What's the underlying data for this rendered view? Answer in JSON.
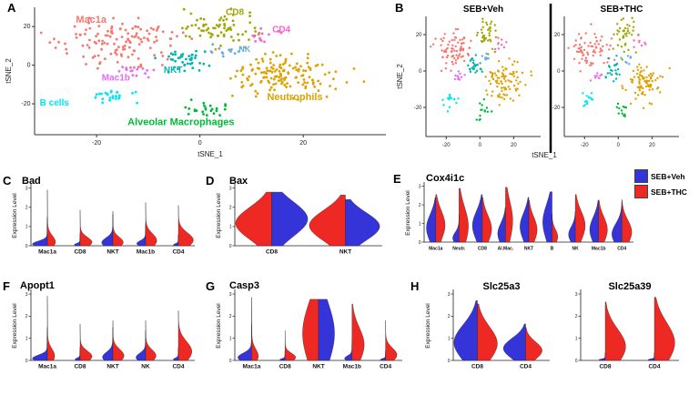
{
  "colors": {
    "blue": "#3434d8",
    "red": "#ee2823"
  },
  "panel_letters": {
    "A": "A",
    "B": "B",
    "C": "C",
    "D": "D",
    "E": "E",
    "F": "F",
    "G": "G",
    "H": "H"
  },
  "legend": {
    "items": [
      {
        "label": "SEB+Veh",
        "color": "#3434d8"
      },
      {
        "label": "SEB+THC",
        "color": "#ee2823"
      }
    ]
  },
  "chart_data": {
    "tsne": {
      "type": "scatter",
      "xlabel": "tSNE_1",
      "ylabel": "tSNE_2",
      "xticks": [
        -20,
        0,
        20
      ],
      "yticks": [
        -20,
        0,
        20
      ],
      "xrange": [
        -32,
        36
      ],
      "yrange": [
        -36,
        30
      ],
      "clusters": [
        {
          "name": "Mac1a",
          "color": "#F8766D",
          "cx": -16,
          "cy": 12,
          "sx": 6.5,
          "sy": 5.5,
          "n": 130,
          "label_x": -24,
          "label_y": 22,
          "label_fs": 11
        },
        {
          "name": "CD8",
          "color": "#9FA800",
          "cx": 4,
          "cy": 19,
          "sx": 3.2,
          "sy": 4.2,
          "n": 70,
          "label_x": 5,
          "label_y": 26,
          "label_fs": 10
        },
        {
          "name": "CD4",
          "color": "#FF61CC",
          "cx": 12,
          "cy": 15,
          "sx": 1.7,
          "sy": 1.7,
          "n": 14,
          "label_x": 14,
          "label_y": 17,
          "label_fs": 10
        },
        {
          "name": "NK",
          "color": "#62AEE4",
          "cx": 5,
          "cy": 7,
          "sx": 1.7,
          "sy": 1.6,
          "n": 13,
          "label_x": 7.5,
          "label_y": 7,
          "label_fs": 9
        },
        {
          "name": "NKT",
          "color": "#00B5AD",
          "cx": -3,
          "cy": 2,
          "sx": 2.1,
          "sy": 3.0,
          "n": 40,
          "label_x": -7,
          "label_y": -4,
          "label_fs": 10
        },
        {
          "name": "Mac1b",
          "color": "#E76BF3",
          "cx": -13,
          "cy": -3,
          "sx": 1.9,
          "sy": 1.5,
          "n": 16,
          "label_x": -19,
          "label_y": -8,
          "label_fs": 10
        },
        {
          "name": "B cells",
          "color": "#00E5F0",
          "cx": -18,
          "cy": -16,
          "sx": 2.5,
          "sy": 2.1,
          "n": 26,
          "label_x": -31,
          "label_y": -21,
          "label_fs": 10
        },
        {
          "name": "Neutrophils",
          "color": "#DFA100",
          "cx": 15,
          "cy": -6,
          "sx": 5.5,
          "sy": 5.2,
          "n": 150,
          "label_x": 13,
          "label_y": -18,
          "label_fs": 11
        },
        {
          "name": "Alveolar Macrophages",
          "color": "#00BA38",
          "cx": 2,
          "cy": -22,
          "sx": 2.3,
          "sy": 2.4,
          "n": 24,
          "label_x": -14,
          "label_y": -31,
          "label_fs": 11
        }
      ]
    },
    "tsne_plots": [
      {
        "id": "A",
        "title": ""
      },
      {
        "id": "B-left",
        "title": "SEB+Veh"
      },
      {
        "id": "B-right",
        "title": "SEB+THC"
      }
    ],
    "violin_panels": [
      {
        "id": "C",
        "type": "split-violin",
        "title": "Bad",
        "ylabel": "Expression Level",
        "yticks": [
          "0",
          "1",
          "2",
          "3"
        ],
        "categories": [
          {
            "label": "Mac1a",
            "sides": [
              {
                "c": "blue",
                "h": 0.5,
                "w": 0.95,
                "b": 0.06,
                "s": 0.1
              },
              {
                "c": "red",
                "h": 0.97,
                "w": 0.5,
                "b": 0.07,
                "s": 0.11
              }
            ]
          },
          {
            "label": "CD8",
            "sides": [
              {
                "c": "blue",
                "h": 0.22,
                "w": 0.35,
                "b": 0.08,
                "s": 0.1
              },
              {
                "c": "red",
                "h": 0.62,
                "w": 0.75,
                "b": 0.1,
                "s": 0.14
              }
            ]
          },
          {
            "label": "NKT",
            "sides": [
              {
                "c": "blue",
                "h": 0.55,
                "w": 0.7,
                "b": 0.1,
                "s": 0.15
              },
              {
                "c": "red",
                "h": 0.6,
                "w": 0.65,
                "b": 0.1,
                "s": 0.15
              }
            ]
          },
          {
            "label": "Mac1b",
            "sides": [
              {
                "c": "blue",
                "h": 0.38,
                "w": 0.55,
                "b": 0.1,
                "s": 0.13
              },
              {
                "c": "red",
                "h": 0.75,
                "w": 0.7,
                "b": 0.12,
                "s": 0.16
              }
            ]
          },
          {
            "label": "CD4",
            "sides": [
              {
                "c": "blue",
                "h": 0.2,
                "w": 0.3,
                "b": 0.08,
                "s": 0.1
              },
              {
                "c": "red",
                "h": 0.7,
                "w": 0.95,
                "b": 0.14,
                "s": 0.18
              }
            ]
          }
        ]
      },
      {
        "id": "D",
        "type": "split-violin",
        "title": "Bax",
        "ylabel": "Expression Level",
        "yticks": [
          "0",
          "1",
          "2",
          "3"
        ],
        "categories": [
          {
            "label": "CD8",
            "sides": [
              {
                "c": "red",
                "h": 0.93,
                "w": 1.0,
                "b": 0.42,
                "s": 0.3
              },
              {
                "c": "blue",
                "h": 0.93,
                "w": 1.0,
                "b": 0.5,
                "s": 0.32
              }
            ]
          },
          {
            "label": "NKT",
            "sides": [
              {
                "c": "red",
                "h": 0.88,
                "w": 1.0,
                "b": 0.4,
                "s": 0.3
              },
              {
                "c": "blue",
                "h": 0.8,
                "w": 0.95,
                "b": 0.42,
                "s": 0.3
              }
            ]
          }
        ]
      },
      {
        "id": "E",
        "type": "split-violin",
        "title": "Cox4i1c",
        "ylabel": "Expression Level",
        "yticks": [
          "0",
          "1",
          "2",
          "3"
        ],
        "categories": [
          {
            "label": "Mac1a",
            "sides": [
              {
                "c": "blue",
                "h": 0.8,
                "w": 0.85,
                "b": 0.32,
                "s": 0.3
              },
              {
                "c": "red",
                "h": 0.85,
                "w": 0.85,
                "b": 0.36,
                "s": 0.3
              }
            ]
          },
          {
            "label": "Neutr.",
            "sides": [
              {
                "c": "blue",
                "h": 0.5,
                "w": 0.55,
                "b": 0.15,
                "s": 0.2
              },
              {
                "c": "red",
                "h": 0.96,
                "w": 0.85,
                "b": 0.3,
                "s": 0.35
              }
            ]
          },
          {
            "label": "CD8",
            "sides": [
              {
                "c": "blue",
                "h": 0.85,
                "w": 0.9,
                "b": 0.35,
                "s": 0.3
              },
              {
                "c": "red",
                "h": 0.8,
                "w": 0.85,
                "b": 0.3,
                "s": 0.3
              }
            ]
          },
          {
            "label": "Al.Mac.",
            "sides": [
              {
                "c": "blue",
                "h": 0.62,
                "w": 0.7,
                "b": 0.25,
                "s": 0.3
              },
              {
                "c": "red",
                "h": 0.98,
                "w": 0.65,
                "b": 0.4,
                "s": 0.35
              }
            ]
          },
          {
            "label": "NKT",
            "sides": [
              {
                "c": "blue",
                "h": 0.8,
                "w": 0.8,
                "b": 0.35,
                "s": 0.3
              },
              {
                "c": "red",
                "h": 0.75,
                "w": 0.75,
                "b": 0.3,
                "s": 0.3
              }
            ]
          },
          {
            "label": "B",
            "sides": [
              {
                "c": "blue",
                "h": 0.9,
                "w": 0.85,
                "b": 0.4,
                "s": 0.35
              },
              {
                "c": "red",
                "h": 0.5,
                "w": 0.5,
                "b": 0.2,
                "s": 0.25
              }
            ]
          },
          {
            "label": "NK",
            "sides": [
              {
                "c": "blue",
                "h": 0.55,
                "w": 0.6,
                "b": 0.25,
                "s": 0.25
              },
              {
                "c": "red",
                "h": 0.85,
                "w": 0.9,
                "b": 0.35,
                "s": 0.3
              }
            ]
          },
          {
            "label": "Mac1b",
            "sides": [
              {
                "c": "blue",
                "h": 0.75,
                "w": 0.8,
                "b": 0.3,
                "s": 0.3
              },
              {
                "c": "red",
                "h": 0.75,
                "w": 0.8,
                "b": 0.3,
                "s": 0.3
              }
            ]
          },
          {
            "label": "CD4",
            "sides": [
              {
                "c": "blue",
                "h": 0.72,
                "w": 0.9,
                "b": 0.2,
                "s": 0.26
              },
              {
                "c": "red",
                "h": 0.76,
                "w": 0.9,
                "b": 0.24,
                "s": 0.28
              }
            ]
          }
        ]
      },
      {
        "id": "F",
        "type": "split-violin",
        "title": "Apopt1",
        "ylabel": "Expression Level",
        "yticks": [
          "0",
          "1",
          "2",
          "3"
        ],
        "categories": [
          {
            "label": "Mac1a",
            "sides": [
              {
                "c": "blue",
                "h": 0.5,
                "w": 0.95,
                "b": 0.06,
                "s": 0.1
              },
              {
                "c": "red",
                "h": 0.97,
                "w": 0.45,
                "b": 0.07,
                "s": 0.11
              }
            ]
          },
          {
            "label": "CD8",
            "sides": [
              {
                "c": "blue",
                "h": 0.2,
                "w": 0.3,
                "b": 0.08,
                "s": 0.1
              },
              {
                "c": "red",
                "h": 0.55,
                "w": 0.75,
                "b": 0.11,
                "s": 0.15
              }
            ]
          },
          {
            "label": "NKT",
            "sides": [
              {
                "c": "blue",
                "h": 0.5,
                "w": 0.65,
                "b": 0.1,
                "s": 0.15
              },
              {
                "c": "red",
                "h": 0.6,
                "w": 0.7,
                "b": 0.12,
                "s": 0.16
              }
            ]
          },
          {
            "label": "NK",
            "sides": [
              {
                "c": "blue",
                "h": 0.45,
                "w": 0.6,
                "b": 0.1,
                "s": 0.14
              },
              {
                "c": "red",
                "h": 0.6,
                "w": 0.65,
                "b": 0.12,
                "s": 0.15
              }
            ]
          },
          {
            "label": "CD4",
            "sides": [
              {
                "c": "blue",
                "h": 0.2,
                "w": 0.3,
                "b": 0.08,
                "s": 0.1
              },
              {
                "c": "red",
                "h": 0.75,
                "w": 0.85,
                "b": 0.18,
                "s": 0.2
              }
            ]
          }
        ]
      },
      {
        "id": "G",
        "type": "split-violin",
        "title": "Casp3",
        "ylabel": "Expression Level",
        "yticks": [
          "0",
          "1",
          "2",
          "3"
        ],
        "categories": [
          {
            "label": "Mac1a",
            "sides": [
              {
                "c": "blue",
                "h": 0.55,
                "w": 0.85,
                "b": 0.08,
                "s": 0.12
              },
              {
                "c": "red",
                "h": 0.95,
                "w": 0.4,
                "b": 0.07,
                "s": 0.11
              }
            ]
          },
          {
            "label": "CD8",
            "sides": [
              {
                "c": "blue",
                "h": 0.15,
                "w": 0.3,
                "b": 0.08,
                "s": 0.1
              },
              {
                "c": "red",
                "h": 0.45,
                "w": 0.65,
                "b": 0.1,
                "s": 0.14
              }
            ]
          },
          {
            "label": "NKT",
            "sides": [
              {
                "c": "red",
                "h": 0.92,
                "w": 1.0,
                "b": 0.45,
                "s": 0.5
              },
              {
                "c": "blue",
                "h": 0.92,
                "w": 1.0,
                "b": 0.45,
                "s": 0.5
              }
            ]
          },
          {
            "label": "Mac1b",
            "sides": [
              {
                "c": "blue",
                "h": 0.3,
                "w": 0.45,
                "b": 0.1,
                "s": 0.13
              },
              {
                "c": "red",
                "h": 0.85,
                "w": 0.75,
                "b": 0.28,
                "s": 0.3
              }
            ]
          },
          {
            "label": "CD4",
            "sides": [
              {
                "c": "blue",
                "h": 0.15,
                "w": 0.3,
                "b": 0.08,
                "s": 0.1
              },
              {
                "c": "red",
                "h": 0.6,
                "w": 0.7,
                "b": 0.14,
                "s": 0.17
              }
            ]
          }
        ]
      },
      {
        "id": "H1",
        "type": "split-violin",
        "title": "Slc25a3",
        "ylabel": "Expression Level",
        "yticks": [
          "0",
          "1",
          "2",
          "3"
        ],
        "categories": [
          {
            "label": "CD8",
            "sides": [
              {
                "c": "blue",
                "h": 0.9,
                "w": 1.0,
                "b": 0.3,
                "s": 0.3
              },
              {
                "c": "red",
                "h": 0.85,
                "w": 0.85,
                "b": 0.3,
                "s": 0.3
              }
            ]
          },
          {
            "label": "CD4",
            "sides": [
              {
                "c": "blue",
                "h": 0.55,
                "w": 0.95,
                "b": 0.33,
                "s": 0.28
              },
              {
                "c": "red",
                "h": 0.5,
                "w": 0.7,
                "b": 0.3,
                "s": 0.26
              }
            ]
          }
        ]
      },
      {
        "id": "H2",
        "type": "split-violin",
        "title": "Slc25a39",
        "ylabel": "",
        "yticks": [
          "0",
          "1",
          "2",
          "3"
        ],
        "categories": [
          {
            "label": "CD8",
            "sides": [
              {
                "c": "blue",
                "h": 0.12,
                "w": 0.25,
                "b": 0.08,
                "s": 0.1
              },
              {
                "c": "red",
                "h": 0.88,
                "w": 0.85,
                "b": 0.24,
                "s": 0.3
              }
            ]
          },
          {
            "label": "CD4",
            "sides": [
              {
                "c": "blue",
                "h": 0.12,
                "w": 0.25,
                "b": 0.08,
                "s": 0.1
              },
              {
                "c": "red",
                "h": 0.95,
                "w": 0.85,
                "b": 0.28,
                "s": 0.32
              }
            ]
          }
        ]
      }
    ]
  }
}
